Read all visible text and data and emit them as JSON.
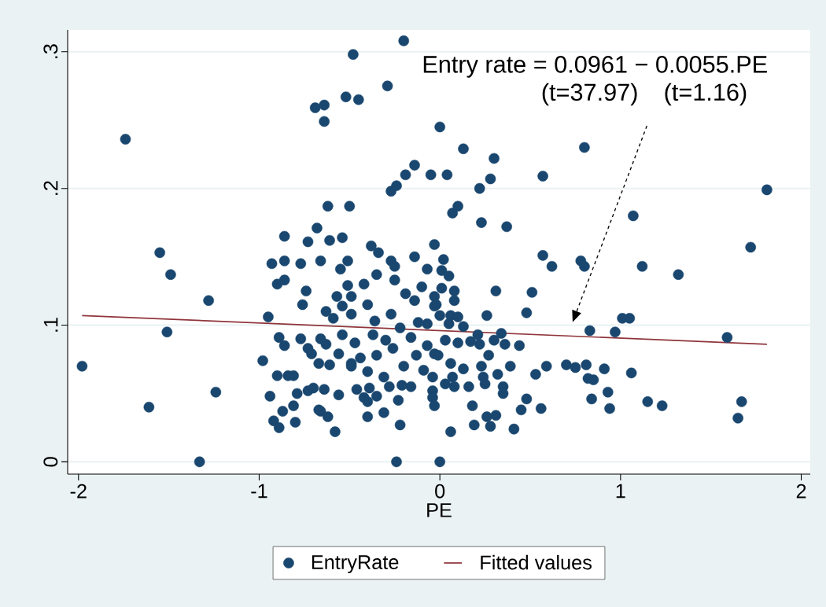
{
  "chart_data": {
    "type": "scatter",
    "xlabel": "PE",
    "xlim": [
      -2.06,
      2.05
    ],
    "ylim": [
      -0.009,
      0.316
    ],
    "xticks": [
      -2,
      -1,
      0,
      1,
      2
    ],
    "yticks": [
      0,
      {
        "value": 0.1,
        "label": ".1"
      },
      {
        "value": 0.2,
        "label": ".2"
      },
      {
        "value": 0.3,
        "label": ".3"
      }
    ],
    "grid": "y",
    "legend": "bottom",
    "annotations": [
      "Entry rate = 0.0961 − 0.0055.PE",
      "(t=37.97)",
      "(t=1.16)"
    ],
    "series": [
      {
        "name": "EntryRate",
        "marker": "circle",
        "color": "#1a476f",
        "x": [
          -1.98,
          -1.74,
          -1.61,
          -1.55,
          -1.49,
          -1.51,
          -1.33,
          -1.28,
          -1.24,
          -0.98,
          -0.95,
          -0.93,
          -0.92,
          -0.89,
          -0.89,
          -0.86,
          -0.86,
          -0.9,
          -0.84,
          -0.79,
          -0.77,
          -0.74,
          -0.76,
          -0.73,
          -0.69,
          -0.64,
          -0.64,
          -0.68,
          -0.66,
          -0.62,
          -0.61,
          -0.67,
          -0.62,
          -0.58,
          -0.7,
          -0.52,
          -0.48,
          -0.45,
          -0.5,
          -0.54,
          -0.29,
          -0.2,
          0.0,
          -0.27,
          -0.24,
          -0.19,
          -0.14,
          -0.05,
          0.04,
          0.07,
          0.1,
          0.13,
          0.22,
          0.28,
          0.3,
          0.23,
          0.37,
          -0.03,
          0.57,
          0.8,
          1.81,
          0.57,
          0.62,
          0.78,
          0.8,
          1.12,
          1.32,
          1.72,
          1.07,
          1.59,
          1.67,
          1.65,
          1.01,
          1.05,
          0.83,
          0.97,
          0.7,
          0.75,
          0.81,
          0.91,
          1.06,
          0.82,
          0.85,
          0.93,
          0.84,
          0.94,
          1.15,
          1.23,
          0.51,
          0.48,
          0.31,
          0.26,
          0.44,
          0.53,
          0.59,
          0.48,
          0.45,
          0.56,
          0.41,
          0.06,
          0.0,
          0.28,
          0.19,
          0.35,
          0.35,
          0.16,
          0.32,
          0.18,
          0.26,
          0.31,
          0.27,
          0.39,
          0.36,
          0.34,
          -0.73,
          -0.86,
          -0.51,
          -0.51,
          -0.55,
          -0.9,
          -0.63,
          -0.59,
          -0.86,
          -0.77,
          -0.71,
          -0.66,
          -0.63,
          -0.56,
          -0.67,
          -0.61,
          -0.49,
          -0.81,
          -0.94,
          -0.73,
          -0.64,
          -0.81,
          -0.87,
          -0.8,
          -0.66,
          -0.56,
          -0.46,
          -0.39,
          -0.42,
          -0.4,
          -0.35,
          -0.4,
          -0.31,
          -0.22,
          -0.24,
          -0.28,
          -0.23,
          -0.16,
          -0.04,
          -0.03,
          -0.38,
          -0.34,
          -0.27,
          -0.25,
          -0.14,
          -0.07,
          -0.25,
          -0.42,
          -0.35,
          -0.1,
          -0.57,
          -0.49,
          -0.54,
          -0.4,
          -0.19,
          -0.14,
          -0.03,
          -0.02,
          -0.36,
          -0.27,
          -0.49,
          -0.54,
          -0.47,
          -0.44,
          -0.49,
          -0.4,
          -0.31,
          -0.21,
          -0.35,
          -0.26,
          -0.2,
          -0.13,
          -0.07,
          -0.03,
          -0.04,
          -0.09,
          -0.16,
          -0.12,
          -0.22,
          -0.3,
          -0.37,
          0.02,
          0.01,
          0.05,
          0.01,
          0.08,
          0.08,
          -0.03,
          0.0,
          0.06,
          0.1,
          -0.07,
          0.05,
          0.13,
          0.21,
          0.17,
          0.22,
          0.1,
          0.03,
          0.3,
          -0.01,
          0.06,
          0.13,
          0.07,
          0.23,
          0.24,
          0.25,
          0.08,
          0.03,
          -0.04
        ],
        "values": [
          0.07,
          0.236,
          0.04,
          0.153,
          0.137,
          0.095,
          0.0,
          0.118,
          0.051,
          0.074,
          0.106,
          0.145,
          0.03,
          0.025,
          0.091,
          0.165,
          0.133,
          0.063,
          0.063,
          0.05,
          0.145,
          0.125,
          0.115,
          0.083,
          0.259,
          0.261,
          0.249,
          0.171,
          0.147,
          0.187,
          0.162,
          0.038,
          0.033,
          0.022,
          0.054,
          0.267,
          0.298,
          0.265,
          0.187,
          0.164,
          0.275,
          0.308,
          0.245,
          0.198,
          0.202,
          0.21,
          0.217,
          0.21,
          0.21,
          0.182,
          0.187,
          0.229,
          0.2,
          0.207,
          0.222,
          0.175,
          0.172,
          0.159,
          0.209,
          0.23,
          0.199,
          0.151,
          0.143,
          0.147,
          0.143,
          0.143,
          0.137,
          0.157,
          0.18,
          0.091,
          0.044,
          0.032,
          0.105,
          0.105,
          0.096,
          0.095,
          0.071,
          0.069,
          0.071,
          0.068,
          0.065,
          0.061,
          0.06,
          0.051,
          0.046,
          0.039,
          0.044,
          0.041,
          0.124,
          0.109,
          0.125,
          0.107,
          0.085,
          0.064,
          0.07,
          0.046,
          0.038,
          0.039,
          0.024,
          0.022,
          0.0,
          0.026,
          0.027,
          0.05,
          0.055,
          0.055,
          0.064,
          0.041,
          0.033,
          0.034,
          0.078,
          0.07,
          0.086,
          0.094,
          0.161,
          0.147,
          0.129,
          0.147,
          0.141,
          0.13,
          0.11,
          0.105,
          0.085,
          0.09,
          0.079,
          0.09,
          0.086,
          0.079,
          0.072,
          0.071,
          0.072,
          0.063,
          0.048,
          0.052,
          0.053,
          0.041,
          0.037,
          0.029,
          0.037,
          0.049,
          0.053,
          0.054,
          0.047,
          0.044,
          0.048,
          0.033,
          0.036,
          0.027,
          0.0,
          0.055,
          0.045,
          0.055,
          0.052,
          0.041,
          0.158,
          0.153,
          0.147,
          0.143,
          0.15,
          0.141,
          0.133,
          0.13,
          0.137,
          0.128,
          0.121,
          0.121,
          0.114,
          0.115,
          0.123,
          0.118,
          0.121,
          0.115,
          0.103,
          0.108,
          0.108,
          0.093,
          0.087,
          0.076,
          0.07,
          0.066,
          0.062,
          0.056,
          0.078,
          0.083,
          0.07,
          0.078,
          0.085,
          0.079,
          0.062,
          0.067,
          0.091,
          0.102,
          0.098,
          0.089,
          0.093,
          0.148,
          0.14,
          0.136,
          0.127,
          0.125,
          0.118,
          0.114,
          0.107,
          0.107,
          0.106,
          0.101,
          0.101,
          0.099,
          0.093,
          0.088,
          0.086,
          0.087,
          0.089,
          0.089,
          0.078,
          0.072,
          0.068,
          0.062,
          0.07,
          0.062,
          0.057,
          0.055,
          0.057,
          0.047
        ]
      },
      {
        "name": "Fitted values",
        "type": "line",
        "marker": "none",
        "color": "#90353b",
        "x": [
          -1.98,
          1.81
        ],
        "values": [
          0.107,
          0.086
        ]
      }
    ]
  }
}
